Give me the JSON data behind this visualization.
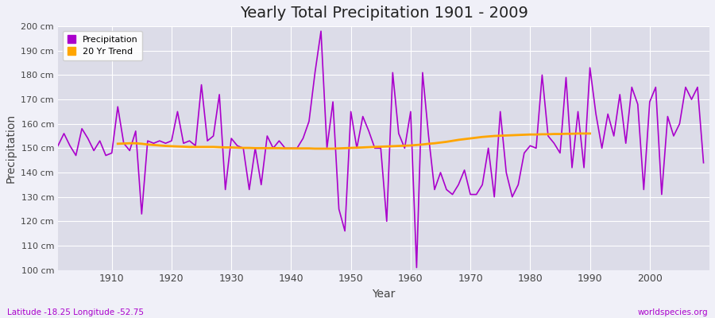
{
  "title": "Yearly Total Precipitation 1901 - 2009",
  "xlabel": "Year",
  "ylabel": "Precipitation",
  "subtitle": "Latitude -18.25 Longitude -52.75",
  "watermark": "worldspecies.org",
  "ylim": [
    100,
    200
  ],
  "yticks": [
    100,
    110,
    120,
    130,
    140,
    150,
    160,
    170,
    180,
    190,
    200
  ],
  "ytick_labels": [
    "100 cm",
    "110 cm",
    "120 cm",
    "130 cm",
    "140 cm",
    "150 cm",
    "160 cm",
    "170 cm",
    "180 cm",
    "190 cm",
    "200 cm"
  ],
  "xticks": [
    1910,
    1920,
    1930,
    1940,
    1950,
    1960,
    1970,
    1980,
    1990,
    2000
  ],
  "precip_color": "#AA00CC",
  "trend_color": "#FFA500",
  "plot_bg_color": "#DCDCE8",
  "fig_bg_color": "#F0F0F8",
  "years": [
    1901,
    1902,
    1903,
    1904,
    1905,
    1906,
    1907,
    1908,
    1909,
    1910,
    1911,
    1912,
    1913,
    1914,
    1915,
    1916,
    1917,
    1918,
    1919,
    1920,
    1921,
    1922,
    1923,
    1924,
    1925,
    1926,
    1927,
    1928,
    1929,
    1930,
    1931,
    1932,
    1933,
    1934,
    1935,
    1936,
    1937,
    1938,
    1939,
    1940,
    1941,
    1942,
    1943,
    1944,
    1945,
    1946,
    1947,
    1948,
    1949,
    1950,
    1951,
    1952,
    1953,
    1954,
    1955,
    1956,
    1957,
    1958,
    1959,
    1960,
    1961,
    1962,
    1963,
    1964,
    1965,
    1966,
    1967,
    1968,
    1969,
    1970,
    1971,
    1972,
    1973,
    1974,
    1975,
    1976,
    1977,
    1978,
    1979,
    1980,
    1981,
    1982,
    1983,
    1984,
    1985,
    1986,
    1987,
    1988,
    1989,
    1990,
    1991,
    1992,
    1993,
    1994,
    1995,
    1996,
    1997,
    1998,
    1999,
    2000,
    2001,
    2002,
    2003,
    2004,
    2005,
    2006,
    2007,
    2008,
    2009
  ],
  "precip": [
    151,
    156,
    151,
    147,
    158,
    154,
    149,
    153,
    147,
    148,
    167,
    152,
    149,
    157,
    123,
    153,
    152,
    153,
    152,
    153,
    165,
    152,
    153,
    151,
    176,
    153,
    155,
    172,
    133,
    154,
    151,
    150,
    133,
    150,
    135,
    155,
    150,
    153,
    150,
    150,
    150,
    154,
    161,
    181,
    198,
    150,
    169,
    125,
    116,
    165,
    150,
    163,
    157,
    150,
    150,
    120,
    181,
    156,
    150,
    165,
    101,
    181,
    155,
    133,
    140,
    133,
    131,
    135,
    141,
    131,
    131,
    135,
    150,
    130,
    165,
    140,
    130,
    135,
    148,
    151,
    150,
    180,
    155,
    152,
    148,
    179,
    142,
    165,
    142,
    183,
    164,
    150,
    164,
    155,
    172,
    152,
    175,
    168,
    133,
    169,
    175,
    131,
    163,
    155,
    160,
    175,
    170,
    175,
    144
  ],
  "trend_years": [
    1911,
    1912,
    1913,
    1914,
    1915,
    1916,
    1917,
    1918,
    1919,
    1920,
    1921,
    1922,
    1923,
    1924,
    1925,
    1926,
    1927,
    1928,
    1929,
    1930,
    1931,
    1932,
    1933,
    1934,
    1935,
    1936,
    1937,
    1938,
    1939,
    1940,
    1941,
    1942,
    1943,
    1944,
    1945,
    1946,
    1947,
    1948,
    1949,
    1950,
    1951,
    1952,
    1953,
    1954,
    1955,
    1956,
    1957,
    1958,
    1959,
    1960,
    1961,
    1962,
    1963,
    1964,
    1965,
    1966,
    1967,
    1968,
    1969,
    1970,
    1971,
    1972,
    1973,
    1974,
    1975,
    1976,
    1977,
    1978,
    1979,
    1980,
    1981,
    1982,
    1983,
    1984,
    1985,
    1986,
    1987,
    1988,
    1989,
    1990
  ],
  "trend": [
    151.8,
    151.9,
    152.0,
    152.0,
    151.8,
    151.5,
    151.3,
    151.1,
    150.9,
    150.8,
    150.7,
    150.6,
    150.5,
    150.5,
    150.5,
    150.5,
    150.5,
    150.4,
    150.3,
    150.3,
    150.2,
    150.1,
    150.1,
    150.0,
    150.0,
    150.0,
    150.0,
    150.0,
    149.9,
    149.9,
    149.9,
    149.9,
    149.9,
    149.8,
    149.8,
    149.8,
    149.8,
    149.9,
    150.0,
    150.1,
    150.2,
    150.3,
    150.4,
    150.5,
    150.6,
    150.7,
    150.8,
    150.9,
    151.0,
    151.1,
    151.3,
    151.5,
    151.8,
    152.0,
    152.3,
    152.6,
    153.0,
    153.4,
    153.7,
    154.0,
    154.3,
    154.6,
    154.8,
    155.0,
    155.1,
    155.2,
    155.3,
    155.4,
    155.5,
    155.6,
    155.6,
    155.7,
    155.7,
    155.8,
    155.8,
    155.9,
    155.9,
    156.0,
    156.0,
    156.0
  ]
}
